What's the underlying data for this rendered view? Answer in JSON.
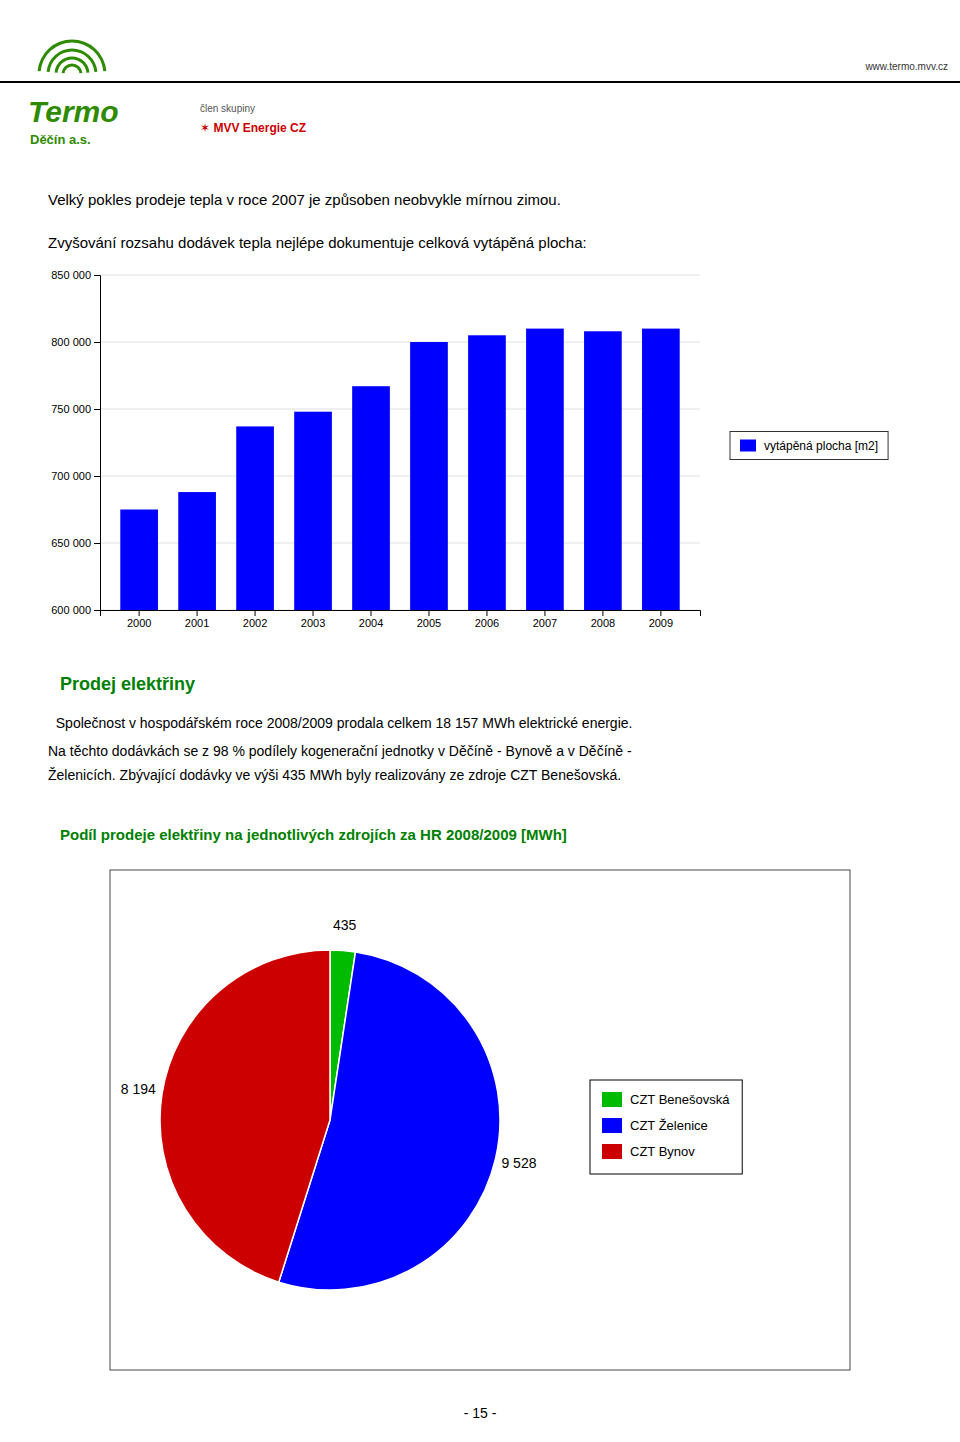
{
  "page": {
    "logo_title": "Termo",
    "logo_subtitle": "Děčín a.s.",
    "website_text": "www.termo.mvv.cz",
    "clen_skupiny_text": "člen skupiny",
    "mvv_text": "✶ MVV Energie CZ",
    "intro_text1": "Velký pokles prodeje tepla v roce 2007 je způsoben neobvykle mírnou zimou.",
    "section_title": "Prodej elektřiny",
    "para1": "  Společnost v hospodářském roce 2008/2009 prodala celkem 18 157 MWh elektrické energie.",
    "para2": "Na těchto dodávkách se z 98 % podílely kogenerační jednotky v Děčíně - Bynově a v Děčíně -",
    "para3": "Želenicích. Zbývající dodávky ve výši 435 MWh byly realizovány ze zdroje CZT Benešovská.",
    "footer_text": "- 15 -"
  },
  "chart_data": [
    {
      "type": "bar",
      "title": "Zvyšování rozsahu dodávek tepla nejlépe dokumentuje celková vytápěná plocha:",
      "categories": [
        "2000",
        "2001",
        "2002",
        "2003",
        "2004",
        "2005",
        "2006",
        "2007",
        "2008",
        "2009"
      ],
      "series": [
        {
          "name": "vytápěná plocha [m2]",
          "color": "#0000ff",
          "values": [
            675000,
            688000,
            737000,
            748000,
            767000,
            800000,
            805000,
            810000,
            808000,
            810000
          ]
        }
      ],
      "ylim": [
        600000,
        850000
      ],
      "yticks": [
        {
          "value": 600000,
          "label": "600 000"
        },
        {
          "value": 650000,
          "label": "650 000"
        },
        {
          "value": 700000,
          "label": "700 000"
        },
        {
          "value": 750000,
          "label": "750 000"
        },
        {
          "value": 800000,
          "label": "800 000"
        },
        {
          "value": 850000,
          "label": "850 000"
        }
      ],
      "grid": true,
      "legend": "right"
    },
    {
      "type": "pie",
      "title": "Podíl prodeje elektřiny na jednotlivých zdrojích za HR 2008/2009 [MWh]",
      "categories": [
        "CZT Benešovská",
        "CZT Želenice",
        "CZT Bynov"
      ],
      "values": [
        435,
        9528,
        8194
      ],
      "value_labels": [
        "435",
        "9 528",
        "8 194"
      ],
      "colors": [
        "#00bb00",
        "#0000ff",
        "#cc0000"
      ],
      "data_labels": true,
      "legend": "right"
    }
  ]
}
